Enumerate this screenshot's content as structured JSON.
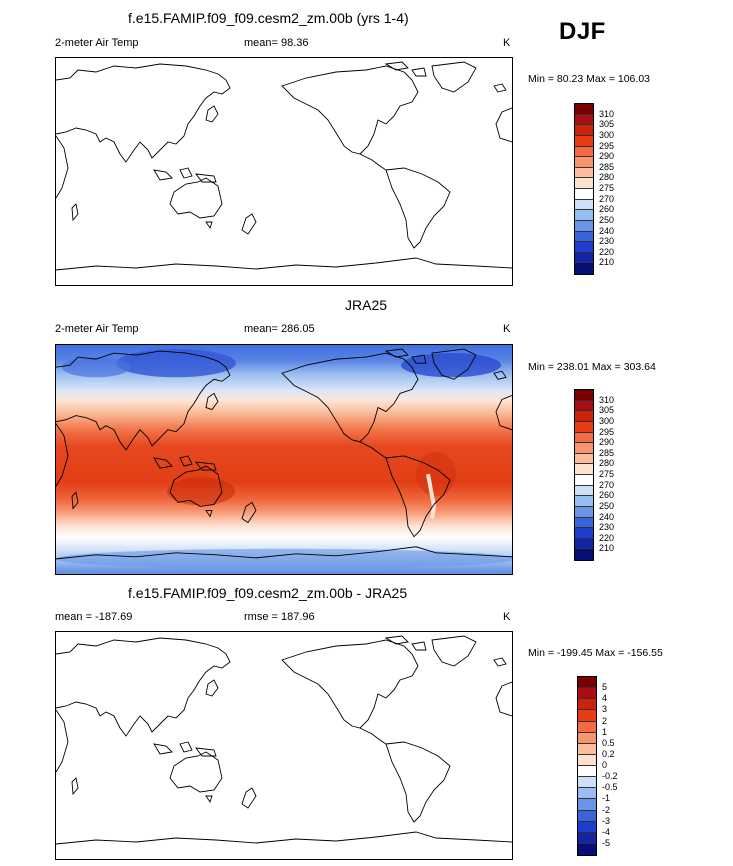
{
  "season": "DJF",
  "panels": [
    {
      "title": "f.e15.FAMIP.f09_f09.cesm2_zm.00b (yrs 1-4)",
      "left_label": "2-meter Air Temp",
      "center_label": "mean=  98.36",
      "right_label": "K",
      "minmax": "Min =  80.23 Max = 106.03",
      "filled": false,
      "colorbar": {
        "labels": [
          "310",
          "305",
          "300",
          "295",
          "290",
          "285",
          "280",
          "275",
          "270",
          "260",
          "250",
          "240",
          "230",
          "220",
          "210"
        ],
        "colors": [
          "#7a0000",
          "#a50f15",
          "#cb2208",
          "#e63d17",
          "#f26b45",
          "#f7956f",
          "#fbbc9f",
          "#fde1cf",
          "#ffffff",
          "#cde0f7",
          "#98bdf0",
          "#6a95e7",
          "#3b63dc",
          "#1f3ccc",
          "#1224a8",
          "#050f75"
        ]
      }
    },
    {
      "title": "JRA25",
      "left_label": "2-meter Air Temp",
      "center_label": "mean= 286.05",
      "right_label": "K",
      "minmax": "Min = 238.01 Max = 303.64",
      "filled": true,
      "colorbar": {
        "labels": [
          "310",
          "305",
          "300",
          "295",
          "290",
          "285",
          "280",
          "275",
          "270",
          "260",
          "250",
          "240",
          "230",
          "220",
          "210"
        ],
        "colors": [
          "#7a0000",
          "#a50f15",
          "#cb2208",
          "#e63d17",
          "#f26b45",
          "#f7956f",
          "#fbbc9f",
          "#fde1cf",
          "#ffffff",
          "#cde0f7",
          "#98bdf0",
          "#6a95e7",
          "#3b63dc",
          "#1f3ccc",
          "#1224a8",
          "#050f75"
        ]
      }
    },
    {
      "title": "f.e15.FAMIP.f09_f09.cesm2_zm.00b - JRA25",
      "left_label": "mean = -187.69",
      "center_label": "rmse = 187.96",
      "right_label": "K",
      "minmax": "Min = -199.45 Max = -156.55",
      "filled": false,
      "colorbar": {
        "labels": [
          "5",
          "4",
          "3",
          "2",
          "1",
          "0.5",
          "0.2",
          "0",
          "-0.2",
          "-0.5",
          "-1",
          "-2",
          "-3",
          "-4",
          "-5"
        ],
        "colors": [
          "#7a0000",
          "#a50f15",
          "#cb2208",
          "#e63d17",
          "#f26b45",
          "#f7956f",
          "#fbbc9f",
          "#fde1cf",
          "#ffffff",
          "#cde0f7",
          "#98bdf0",
          "#6a95e7",
          "#3b63dc",
          "#1f3ccc",
          "#1224a8",
          "#050f75"
        ]
      }
    }
  ]
}
